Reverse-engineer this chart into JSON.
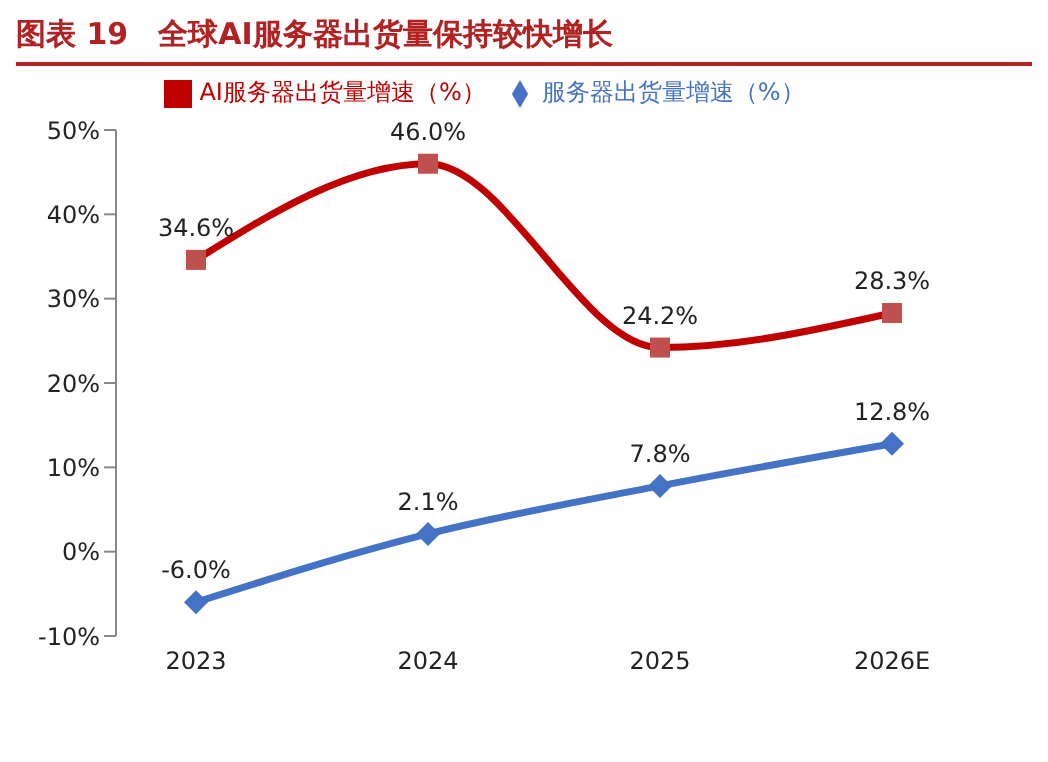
{
  "chart_data": {
    "type": "line",
    "title": "图表 19　全球AI服务器出货量保持较快增长",
    "categories": [
      "2023",
      "2024",
      "2025",
      "2026E"
    ],
    "series": [
      {
        "name": "服务器出货量增速（%）",
        "color": "#4472c4",
        "marker": "diamond",
        "values": [
          -6.0,
          2.1,
          7.8,
          12.8
        ],
        "value_labels": [
          "-6.0%",
          "2.1%",
          "7.8%",
          "12.8%"
        ]
      },
      {
        "name": "AI服务器出货量增速（%）",
        "color": "#c00000",
        "marker": "square",
        "values": [
          34.6,
          46.0,
          24.2,
          28.3
        ],
        "value_labels": [
          "34.6%",
          "46.0%",
          "24.2%",
          "28.3%"
        ]
      }
    ],
    "ylim": [
      -10,
      50
    ],
    "yticks": [
      {
        "value": -10,
        "label": "-10%"
      },
      {
        "value": 0,
        "label": "0%"
      },
      {
        "value": 10,
        "label": "10%"
      },
      {
        "value": 20,
        "label": "20%"
      },
      {
        "value": 30,
        "label": "30%"
      },
      {
        "value": 40,
        "label": "40%"
      },
      {
        "value": 50,
        "label": "50%"
      }
    ],
    "grid": false,
    "legend": "top",
    "line_style": "solid"
  }
}
